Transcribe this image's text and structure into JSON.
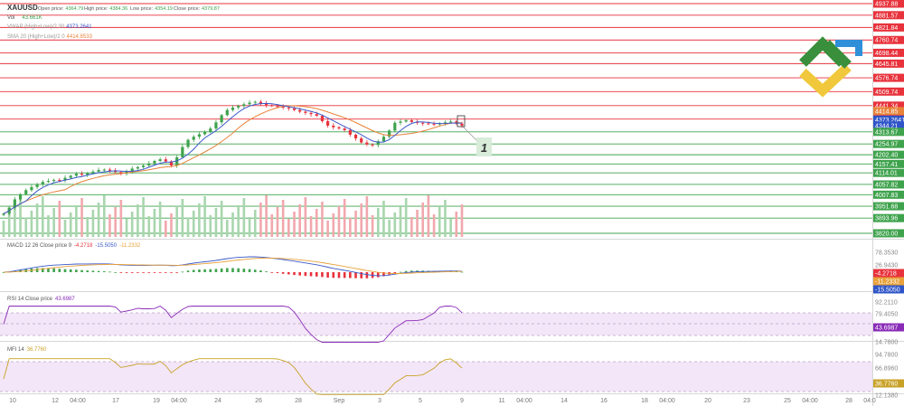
{
  "header": {
    "symbol": "XAUUSD",
    "ohlc": [
      {
        "label": "Open price:",
        "value": "4364.79"
      },
      {
        "label": "High price:",
        "value": "4384.36"
      },
      {
        "label": "Low price:",
        "value": "4354.19"
      },
      {
        "label": "Close price:",
        "value": "4379.87"
      }
    ],
    "vol_label": "Vol",
    "vol_value": "43.661K",
    "vwap_label": "VWAP (High+Low)/2 30",
    "vwap_value": "4373.2641",
    "sma_label": "SMA 20 (High+Low)/2 0",
    "sma_value": "4414.8533"
  },
  "price_levels": [
    {
      "label": "4937.88",
      "kind": "resistance"
    },
    {
      "label": "4881.57",
      "kind": "resistance"
    },
    {
      "label": "4821.84",
      "kind": "resistance"
    },
    {
      "label": "4760.74",
      "kind": "resistance"
    },
    {
      "label": "4698.44",
      "kind": "resistance"
    },
    {
      "label": "4645.81",
      "kind": "resistance"
    },
    {
      "label": "4576.74",
      "kind": "resistance"
    },
    {
      "label": "4509.74",
      "kind": "resistance"
    },
    {
      "label": "4441.34",
      "kind": "resistance"
    },
    {
      "label": "4414.85",
      "kind": "sma"
    },
    {
      "label": "4376.04",
      "kind": "resistance"
    },
    {
      "label": "4373.2641",
      "kind": "vwap"
    },
    {
      "label": "4344.21",
      "kind": "current"
    },
    {
      "label": "4313.67",
      "kind": "support"
    },
    {
      "label": "4254.97",
      "kind": "support"
    },
    {
      "label": "4202.40",
      "kind": "support"
    },
    {
      "label": "4157.41",
      "kind": "support"
    },
    {
      "label": "4114.01",
      "kind": "support"
    },
    {
      "label": "4057.82",
      "kind": "support"
    },
    {
      "label": "4007.83",
      "kind": "support"
    },
    {
      "label": "3951.68",
      "kind": "support"
    },
    {
      "label": "3893.96",
      "kind": "support"
    },
    {
      "label": "3820.00",
      "kind": "support"
    }
  ],
  "annotation": {
    "label": "1"
  },
  "colors": {
    "resistance": "#e8323c",
    "support": "#3fa34d",
    "candle_up": "#3fa34d",
    "candle_down": "#e8323c",
    "sma": "#e8833a",
    "vwap": "#3a59c9",
    "vwap_axis": "#2f55c8",
    "current_axis": "#2f55c8",
    "macd_line": "#3a59c9",
    "signal_line": "#e8a13a",
    "rsi": "#8a2bb8",
    "mfi": "#c8a227",
    "indicator_band": "#f3e6f8"
  },
  "macd": {
    "label": "MACD 12 26 Close price 9",
    "values": [
      "-4.2718",
      "-15.5050",
      "-11.2332"
    ],
    "axis": [
      "78.3530",
      "26.9430",
      "-4.2718",
      "-11.2332",
      "-15.5050"
    ]
  },
  "rsi": {
    "label": "RSI 14 Close price",
    "value": "43.6987",
    "axis": [
      "92.2110",
      "79.4050",
      "43.6987",
      "14.7800"
    ]
  },
  "mfi": {
    "label": "MFI 14",
    "value": "36.7760",
    "axis": [
      "94.7800",
      "66.8960",
      "36.7760",
      "12.1380"
    ]
  },
  "x_axis": [
    "10",
    "12",
    "04:00",
    "17",
    "19",
    "04:00",
    "24",
    "26",
    "28",
    "Sep",
    "3",
    "5",
    "9",
    "11",
    "04:00",
    "14",
    "16",
    "18",
    "04:00",
    "20",
    "23",
    "25",
    "04:00",
    "28",
    "04:0"
  ],
  "chart_data": {
    "type": "candlestick",
    "title": "XAUUSD",
    "ohlc_last": {
      "open": 4364.79,
      "high": 4384.36,
      "low": 4354.19,
      "close": 4379.87
    },
    "close_series": [
      3915,
      3945,
      3985,
      4010,
      4030,
      4045,
      4060,
      4070,
      4075,
      4080,
      4078,
      4090,
      4100,
      4110,
      4105,
      4112,
      4120,
      4128,
      4130,
      4125,
      4118,
      4110,
      4122,
      4135,
      4142,
      4150,
      4160,
      4172,
      4180,
      4170,
      4150,
      4190,
      4240,
      4275,
      4290,
      4302,
      4315,
      4330,
      4360,
      4395,
      4420,
      4432,
      4440,
      4448,
      4456,
      4460,
      4452,
      4444,
      4440,
      4436,
      4432,
      4428,
      4420,
      4412,
      4406,
      4400,
      4392,
      4366,
      4344,
      4336,
      4330,
      4322,
      4300,
      4282,
      4262,
      4252,
      4250,
      4268,
      4290,
      4320,
      4358,
      4364,
      4370,
      4362,
      4358,
      4355,
      4352,
      4350,
      4356,
      4360,
      4364,
      4354,
      4344
    ],
    "sma_20": 4414.8533,
    "vwap_30": 4373.2641,
    "volume_last": "43.661K",
    "macd": {
      "macd": -4.2718,
      "signal": -15.505,
      "histogram": -11.2332
    },
    "rsi_14": 43.6987,
    "mfi_14": 36.776,
    "price_axis_range": [
      3820.0,
      4937.88
    ]
  }
}
